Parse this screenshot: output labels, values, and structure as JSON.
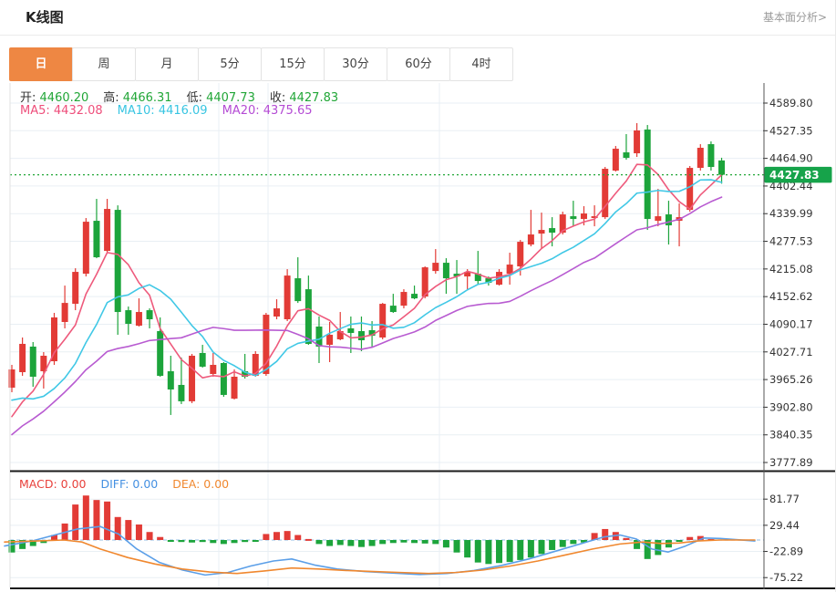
{
  "window": {
    "title": "K线图",
    "link_label": "基本面分析>"
  },
  "tabs": {
    "items": [
      "日",
      "周",
      "月",
      "5分",
      "15分",
      "30分",
      "60分",
      "4时"
    ],
    "active_index": 0
  },
  "ohlc_legend": {
    "items": [
      {
        "label": "开:",
        "value": "4460.20"
      },
      {
        "label": "高:",
        "value": "4466.31"
      },
      {
        "label": "低:",
        "value": "4407.73"
      },
      {
        "label": "收:",
        "value": "4427.83"
      }
    ]
  },
  "ma_legend": {
    "items": [
      {
        "label": "MA5:",
        "value": "4432.08",
        "color": "#EE4E7B"
      },
      {
        "label": "MA10:",
        "value": "4416.09",
        "color": "#38C5E2"
      },
      {
        "label": "MA20:",
        "value": "4375.65",
        "color": "#B44BD4"
      }
    ]
  },
  "macd_legend": {
    "items": [
      {
        "label": "MACD:",
        "value": "0.00",
        "color": "#E8403B"
      },
      {
        "label": "DIFF:",
        "value": "0.00",
        "color": "#4490E2"
      },
      {
        "label": "DEA:",
        "value": "0.00",
        "color": "#F0882F"
      }
    ]
  },
  "colors": {
    "up_red": "#E23B36",
    "down_green": "#1CA43B",
    "value_green": "#21A637",
    "price_label_bg": "#16A34A",
    "ma5": "#EE5A7C",
    "ma10": "#41C8E6",
    "ma20": "#B85BD1",
    "diff_blue": "#5B9FE8",
    "dea_orange": "#F0882F",
    "grid": "#E9EFF4",
    "axis_line": "#555555",
    "axis_text": "#333333",
    "dark_border": "#1a1a1a",
    "zero_dash": "#A9CCE9"
  },
  "chart_data": {
    "type": "candlestick",
    "title": "K线图",
    "legend_position": "top-left",
    "grid": "on",
    "y_axis_ticks": [
      4589.8,
      4527.35,
      4464.9,
      4402.44,
      4339.99,
      4277.53,
      4215.08,
      4152.62,
      4090.17,
      4027.71,
      3965.26,
      3902.8,
      3840.35,
      3777.89
    ],
    "current_price": "4427.83",
    "current_price_value": 4427.83,
    "candles_ohlc": [
      [
        3947.0,
        3998.5,
        3936.7,
        3988.2
      ],
      [
        3982.0,
        4060.3,
        3973.7,
        4045.9
      ],
      [
        4039.7,
        4050.0,
        3949.0,
        3971.7
      ],
      [
        3984.1,
        4027.3,
        3945.0,
        4019.1
      ],
      [
        4006.7,
        4115.9,
        3998.5,
        4105.6
      ],
      [
        4095.3,
        4177.6,
        4080.9,
        4138.4
      ],
      [
        4136.4,
        4216.7,
        4122.0,
        4208.5
      ],
      [
        4204.4,
        4330.1,
        4198.2,
        4321.8
      ],
      [
        4323.9,
        4373.4,
        4239.4,
        4241.5
      ],
      [
        4255.9,
        4373.4,
        4251.8,
        4350.7
      ],
      [
        4348.6,
        4358.9,
        4066.5,
        4117.9
      ],
      [
        4122.0,
        4130.2,
        4066.5,
        4091.2
      ],
      [
        4087.0,
        4148.7,
        4085.0,
        4117.9
      ],
      [
        4122.0,
        4126.1,
        4080.9,
        4101.5
      ],
      [
        4074.7,
        4105.6,
        3971.7,
        3973.7
      ],
      [
        3984.1,
        4019.1,
        3885.3,
        3942.9
      ],
      [
        3953.2,
        4015.0,
        3910.0,
        3916.2
      ],
      [
        3916.2,
        4023.2,
        3912.0,
        4019.1
      ],
      [
        4025.3,
        4043.8,
        3992.3,
        3994.4
      ],
      [
        3977.9,
        4025.3,
        3971.7,
        3998.5
      ],
      [
        4002.6,
        4004.7,
        3926.4,
        3930.6
      ],
      [
        3922.3,
        3988.2,
        3920.3,
        3971.7
      ],
      [
        3984.1,
        4023.2,
        3967.6,
        3971.7
      ],
      [
        3973.7,
        4029.4,
        3971.7,
        4023.2
      ],
      [
        3977.9,
        4115.9,
        3973.7,
        4111.7
      ],
      [
        4107.7,
        4146.7,
        4101.5,
        4126.1
      ],
      [
        4101.5,
        4214.7,
        4097.3,
        4200.2
      ],
      [
        4194.1,
        4241.5,
        4138.4,
        4142.5
      ],
      [
        4169.3,
        4200.2,
        4043.8,
        4045.9
      ],
      [
        4085.0,
        4107.7,
        4002.6,
        4039.7
      ],
      [
        4043.8,
        4095.3,
        4004.7,
        4066.5
      ],
      [
        4056.2,
        4117.9,
        4054.1,
        4074.7
      ],
      [
        4080.9,
        4107.7,
        4025.3,
        4070.6
      ],
      [
        4074.7,
        4107.7,
        4029.4,
        4054.1
      ],
      [
        4076.8,
        4097.3,
        4039.7,
        4064.4
      ],
      [
        4060.3,
        4138.4,
        4056.2,
        4136.4
      ],
      [
        4132.2,
        4159.0,
        4115.9,
        4117.9
      ],
      [
        4132.2,
        4169.3,
        4126.1,
        4163.2
      ],
      [
        4159.0,
        4177.6,
        4146.7,
        4148.7
      ],
      [
        4152.8,
        4220.9,
        4148.7,
        4218.8
      ],
      [
        4210.5,
        4260.0,
        4204.4,
        4229.1
      ],
      [
        4229.1,
        4239.4,
        4159.0,
        4194.1
      ],
      [
        4204.4,
        4235.3,
        4159.0,
        4198.2
      ],
      [
        4198.2,
        4214.7,
        4169.3,
        4208.5
      ],
      [
        4204.4,
        4255.9,
        4179.6,
        4187.9
      ],
      [
        4194.1,
        4198.2,
        4177.6,
        4183.8
      ],
      [
        4179.6,
        4214.7,
        4177.6,
        4208.5
      ],
      [
        4204.4,
        4251.8,
        4179.6,
        4225.0
      ],
      [
        4220.9,
        4280.6,
        4200.2,
        4276.5
      ],
      [
        4270.3,
        4348.6,
        4266.2,
        4293.0
      ],
      [
        4295.0,
        4342.4,
        4262.1,
        4303.3
      ],
      [
        4307.4,
        4332.1,
        4266.2,
        4297.1
      ],
      [
        4297.1,
        4344.5,
        4293.0,
        4338.3
      ],
      [
        4334.2,
        4369.2,
        4311.5,
        4328.0
      ],
      [
        4328.0,
        4356.9,
        4313.6,
        4340.4
      ],
      [
        4330.1,
        4358.9,
        4311.5,
        4334.2
      ],
      [
        4332.1,
        4445.5,
        4328.0,
        4441.4
      ],
      [
        4437.3,
        4492.9,
        4435.2,
        4486.7
      ],
      [
        4478.5,
        4519.7,
        4462.0,
        4466.1
      ],
      [
        4476.4,
        4544.5,
        4468.2,
        4528.0
      ],
      [
        4530.0,
        4540.3,
        4303.3,
        4328.0
      ],
      [
        4323.9,
        4396.0,
        4311.5,
        4334.2
      ],
      [
        4338.3,
        4369.2,
        4270.3,
        4313.6
      ],
      [
        4323.9,
        4363.1,
        4266.2,
        4332.1
      ],
      [
        4348.6,
        4447.6,
        4344.5,
        4443.4
      ],
      [
        4443.4,
        4497.0,
        4437.3,
        4488.8
      ],
      [
        4497.0,
        4503.2,
        4437.3,
        4445.5
      ],
      [
        4460.2,
        4466.31,
        4407.73,
        4427.83
      ]
    ],
    "ma_periods": [
      5,
      10,
      20
    ],
    "ma_prehistory_estimate": [
      3640,
      3650,
      3660,
      3670,
      3680,
      3700,
      3730,
      3790,
      3850,
      3920,
      3980,
      4000,
      3990,
      3960,
      3930,
      3900,
      3880,
      3850,
      3830,
      3860
    ],
    "macd": {
      "axis_ticks": [
        81.77,
        29.44,
        -22.89,
        -75.22
      ],
      "histogram": [
        -25,
        -18,
        -12,
        -6,
        10,
        33,
        71,
        89,
        80,
        77,
        46,
        40,
        31,
        16,
        6,
        -3,
        -4,
        -5,
        -4,
        -6,
        -8,
        -6,
        -4,
        -2,
        12,
        16,
        18,
        10,
        2,
        -8,
        -12,
        -10,
        -12,
        -14,
        -12,
        -8,
        -6,
        -5,
        -6,
        -7,
        -8,
        -15,
        -25,
        -35,
        -45,
        -48,
        -46,
        -44,
        -40,
        -35,
        -28,
        -20,
        -14,
        -8,
        -5,
        14,
        22,
        16,
        4,
        -18,
        -38,
        -30,
        -15,
        -3,
        6,
        8,
        2,
        0
      ],
      "diff_line": [
        [
          5,
          -12
        ],
        [
          35,
          -2
        ],
        [
          60,
          10
        ],
        [
          85,
          22
        ],
        [
          110,
          27
        ],
        [
          130,
          12
        ],
        [
          150,
          -18
        ],
        [
          175,
          -45
        ],
        [
          200,
          -60
        ],
        [
          225,
          -70
        ],
        [
          250,
          -65
        ],
        [
          275,
          -52
        ],
        [
          300,
          -42
        ],
        [
          320,
          -38
        ],
        [
          345,
          -50
        ],
        [
          370,
          -58
        ],
        [
          400,
          -63
        ],
        [
          430,
          -66
        ],
        [
          460,
          -69
        ],
        [
          490,
          -67
        ],
        [
          520,
          -61
        ],
        [
          550,
          -51
        ],
        [
          580,
          -38
        ],
        [
          610,
          -22
        ],
        [
          640,
          -6
        ],
        [
          662,
          6
        ],
        [
          680,
          10
        ],
        [
          698,
          2
        ],
        [
          715,
          -18
        ],
        [
          733,
          -24
        ],
        [
          752,
          -12
        ],
        [
          772,
          4
        ],
        [
          790,
          3
        ],
        [
          828,
          -2
        ]
      ],
      "dea_line": [
        [
          5,
          -4
        ],
        [
          40,
          -2
        ],
        [
          70,
          0
        ],
        [
          90,
          -4
        ],
        [
          110,
          -18
        ],
        [
          140,
          -35
        ],
        [
          170,
          -48
        ],
        [
          200,
          -58
        ],
        [
          230,
          -64
        ],
        [
          260,
          -67
        ],
        [
          290,
          -62
        ],
        [
          320,
          -56
        ],
        [
          350,
          -58
        ],
        [
          380,
          -61
        ],
        [
          410,
          -63
        ],
        [
          440,
          -65
        ],
        [
          470,
          -67
        ],
        [
          500,
          -65
        ],
        [
          530,
          -60
        ],
        [
          560,
          -52
        ],
        [
          590,
          -42
        ],
        [
          620,
          -30
        ],
        [
          650,
          -18
        ],
        [
          680,
          -8
        ],
        [
          705,
          -4
        ],
        [
          725,
          -7
        ],
        [
          745,
          -6
        ],
        [
          765,
          -2
        ],
        [
          790,
          0
        ],
        [
          828,
          0
        ]
      ]
    },
    "vertical_gridlines_x": [
      240,
      294,
      482
    ]
  }
}
